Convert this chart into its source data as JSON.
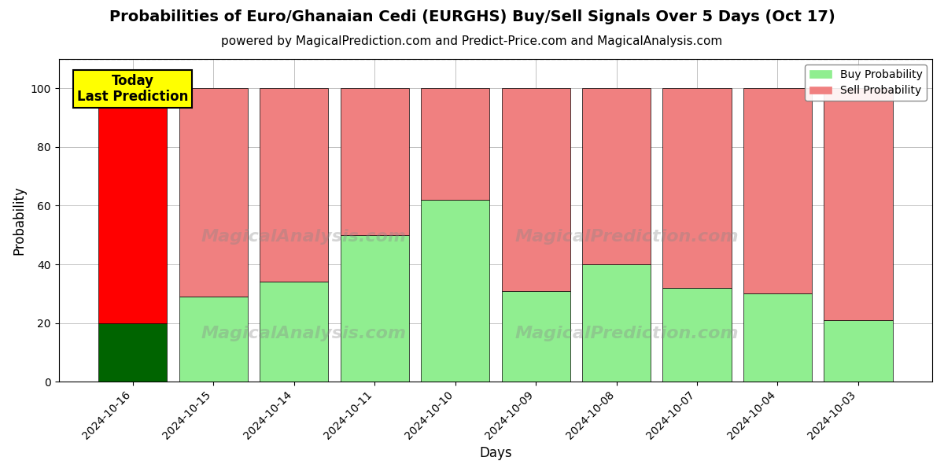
{
  "title": "Probabilities of Euro/Ghanaian Cedi (EURGHS) Buy/Sell Signals Over 5 Days (Oct 17)",
  "subtitle": "powered by MagicalPrediction.com and Predict-Price.com and MagicalAnalysis.com",
  "xlabel": "Days",
  "ylabel": "Probability",
  "categories": [
    "2024-10-16",
    "2024-10-15",
    "2024-10-14",
    "2024-10-11",
    "2024-10-10",
    "2024-10-09",
    "2024-10-08",
    "2024-10-07",
    "2024-10-04",
    "2024-10-03"
  ],
  "buy_values": [
    20,
    29,
    34,
    50,
    62,
    31,
    40,
    32,
    30,
    21
  ],
  "sell_values": [
    80,
    71,
    66,
    50,
    38,
    69,
    60,
    68,
    70,
    79
  ],
  "buy_color_default": "#90EE90",
  "sell_color_default": "#F08080",
  "buy_color_today": "#006400",
  "sell_color_today": "#FF0000",
  "today_label": "Today\nLast Prediction",
  "ylim": [
    0,
    110
  ],
  "dashed_line_y": 110,
  "legend_buy": "Buy Probability",
  "legend_sell": "Sell Probability",
  "title_fontsize": 14,
  "subtitle_fontsize": 11,
  "axis_label_fontsize": 12,
  "tick_fontsize": 10,
  "legend_fontsize": 10,
  "background_color": "#ffffff",
  "grid_color": "#aaaaaa",
  "bar_width": 0.85
}
